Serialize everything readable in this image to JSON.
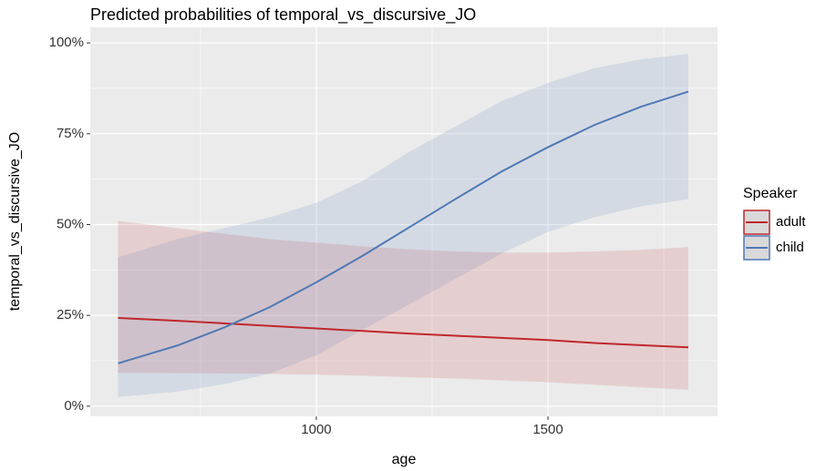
{
  "chart_data": {
    "type": "line",
    "title": "Predicted probabilities of temporal_vs_discursive_JO",
    "x_label": "age",
    "y_label": "temporal_vs_discursive_JO",
    "legend_title": "Speaker",
    "legend_position": "right",
    "grid": true,
    "x": [
      572,
      700,
      800,
      900,
      1000,
      1100,
      1200,
      1300,
      1400,
      1500,
      1600,
      1700,
      1803
    ],
    "xlim": [
      512,
      1866
    ],
    "xticks": [
      1000,
      1500
    ],
    "x_minor_ticks": [
      750,
      1250,
      1750
    ],
    "ylim": [
      -2.8,
      104.3
    ],
    "yticks": [
      {
        "value": 0,
        "label": "0%"
      },
      {
        "value": 25,
        "label": "25%"
      },
      {
        "value": 50,
        "label": "50%"
      },
      {
        "value": 75,
        "label": "75%"
      },
      {
        "value": 100,
        "label": "100%"
      }
    ],
    "y_minor_ticks": [
      12.5,
      37.5,
      62.5,
      87.5
    ],
    "series": [
      {
        "name": "adult",
        "color": "#c0272d",
        "values": [
          24.3,
          23.5,
          22.8,
          22.1,
          21.4,
          20.7,
          20.0,
          19.4,
          18.8,
          18.2,
          17.4,
          16.8,
          16.2
        ],
        "lower": [
          9.2,
          9.1,
          9.0,
          8.9,
          8.7,
          8.4,
          8.0,
          7.6,
          7.1,
          6.6,
          5.9,
          5.2,
          4.5
        ],
        "upper": [
          51,
          49,
          47.5,
          46,
          45,
          44,
          43.2,
          42.6,
          42.3,
          42.3,
          42.6,
          43,
          43.8
        ]
      },
      {
        "name": "child",
        "color": "#4f79b5",
        "values": [
          11.8,
          16.7,
          21.6,
          27.3,
          34.1,
          41.4,
          49.2,
          57.0,
          64.6,
          71.3,
          77.4,
          82.4,
          86.6
        ],
        "lower": [
          2.5,
          4,
          6,
          9,
          14,
          21,
          28,
          35,
          42,
          48,
          52,
          55,
          57
        ],
        "upper": [
          41,
          46,
          49,
          52,
          56,
          62,
          70,
          77,
          84,
          89,
          93,
          95.5,
          97
        ]
      }
    ]
  }
}
